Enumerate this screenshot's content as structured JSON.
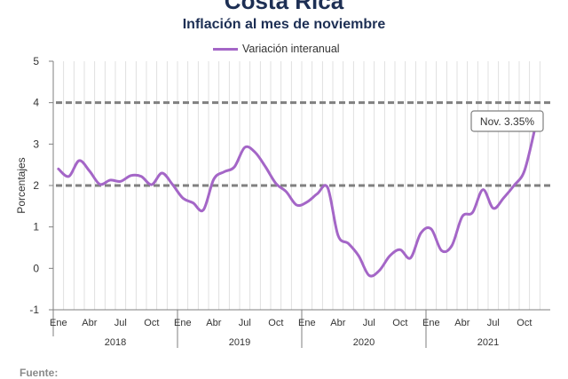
{
  "header": {
    "title": "Costa Rica",
    "subtitle": "Inflación al mes de noviembre"
  },
  "footer": {
    "source": "Fuente:"
  },
  "chart_data": {
    "type": "line",
    "ylabel": "Porcentajes",
    "ylim": [
      -1,
      5
    ],
    "yticks": [
      5,
      4,
      3,
      2,
      1,
      0,
      -1
    ],
    "month_ticks": [
      "Ene",
      "Abr",
      "Jul",
      "Oct"
    ],
    "years": [
      "2018",
      "2019",
      "2020",
      "2021"
    ],
    "grid": "vertical monthly",
    "reference_lines": [
      4,
      2
    ],
    "annotation": {
      "text": "Nov. 3.35%",
      "x": "2021-11",
      "y": 3.35
    },
    "colors": {
      "series": "#a466c7",
      "reference": "#808080"
    },
    "series": [
      {
        "name": "Variación interanual",
        "x": [
          "2018-01",
          "2018-02",
          "2018-03",
          "2018-04",
          "2018-05",
          "2018-06",
          "2018-07",
          "2018-08",
          "2018-09",
          "2018-10",
          "2018-11",
          "2018-12",
          "2019-01",
          "2019-02",
          "2019-03",
          "2019-04",
          "2019-05",
          "2019-06",
          "2019-07",
          "2019-08",
          "2019-09",
          "2019-10",
          "2019-11",
          "2019-12",
          "2020-01",
          "2020-02",
          "2020-03",
          "2020-04",
          "2020-05",
          "2020-06",
          "2020-07",
          "2020-08",
          "2020-09",
          "2020-10",
          "2020-11",
          "2020-12",
          "2021-01",
          "2021-02",
          "2021-03",
          "2021-04",
          "2021-05",
          "2021-06",
          "2021-07",
          "2021-08",
          "2021-09",
          "2021-10",
          "2021-11"
        ],
        "values": [
          2.4,
          2.22,
          2.6,
          2.35,
          2.03,
          2.13,
          2.1,
          2.24,
          2.22,
          2.02,
          2.3,
          2.03,
          1.7,
          1.58,
          1.41,
          2.15,
          2.33,
          2.45,
          2.92,
          2.8,
          2.45,
          2.05,
          1.85,
          1.53,
          1.6,
          1.8,
          1.95,
          0.8,
          0.6,
          0.3,
          -0.17,
          -0.05,
          0.3,
          0.45,
          0.25,
          0.85,
          0.95,
          0.43,
          0.55,
          1.25,
          1.35,
          1.9,
          1.45,
          1.7,
          2.0,
          2.35,
          3.35
        ]
      }
    ]
  }
}
